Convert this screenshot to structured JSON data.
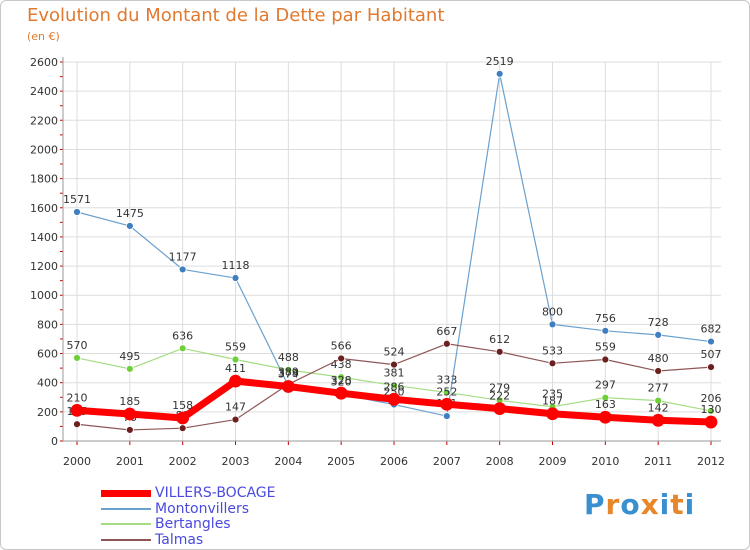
{
  "title": "Evolution du Montant de la Dette par Habitant",
  "subtitle": "(en €)",
  "logo": {
    "text": "Proxiti",
    "colors": [
      "#3a8fd0",
      "#e8862a",
      "#3a8fd0",
      "#e8862a",
      "#3a8fd0",
      "#e8862a",
      "#3a8fd0"
    ]
  },
  "chart_data": {
    "type": "line",
    "x": [
      "2000",
      "2001",
      "2002",
      "2003",
      "2004",
      "2005",
      "2006",
      "2007",
      "2008",
      "2009",
      "2010",
      "2011",
      "2012"
    ],
    "ylim": [
      0,
      2600
    ],
    "yticks": [
      "0",
      "200",
      "400",
      "600",
      "800",
      "1000",
      "1200",
      "1400",
      "1600",
      "1800",
      "2000",
      "2200",
      "2400",
      "2600"
    ],
    "grid": true,
    "legend_position": "bottom-left",
    "series": [
      {
        "name": "Montonvillers",
        "color": "#6aa1cf",
        "marker": "#3f7fc0",
        "width": 1.2,
        "values": [
          1571,
          1475,
          1177,
          1118,
          379,
          320,
          250,
          171,
          2519,
          800,
          756,
          728,
          682
        ],
        "labels": [
          "1571",
          "1475",
          "1177",
          "1118",
          "379",
          "320",
          "250",
          "171",
          "2519",
          "800",
          "756",
          "728",
          "682"
        ]
      },
      {
        "name": "Bertangles",
        "color": "#a6dd84",
        "marker": "#6fcf3a",
        "width": 1.2,
        "values": [
          570,
          495,
          636,
          559,
          488,
          438,
          381,
          333,
          279,
          235,
          297,
          277,
          206
        ],
        "labels": [
          "570",
          "495",
          "636",
          "559",
          "488",
          "438",
          "381",
          "333",
          "279",
          "235",
          "297",
          "277",
          "206"
        ]
      },
      {
        "name": "Talmas",
        "color": "#8f5656",
        "marker": "#6b1f1f",
        "width": 1.2,
        "values": [
          115,
          76,
          88,
          147,
          389,
          566,
          524,
          667,
          612,
          533,
          559,
          480,
          507
        ],
        "labels": [
          "115",
          "76",
          "88",
          "147",
          "389",
          "566",
          "524",
          "667",
          "612",
          "533",
          "559",
          "480",
          "507"
        ]
      },
      {
        "name": "VILLERS-BOCAGE",
        "color": "#ff0000",
        "marker": "#ff0000",
        "width": 7,
        "values": [
          210,
          185,
          158,
          411,
          374,
          328,
          286,
          252,
          222,
          187,
          163,
          142,
          130
        ],
        "labels": [
          "210",
          "185",
          "158",
          "411",
          "374",
          "328",
          "286",
          "252",
          "222",
          "187",
          "163",
          "142",
          "130"
        ]
      }
    ]
  },
  "legend": [
    {
      "label": "VILLERS-BOCAGE",
      "color": "#ff0000",
      "thickness": 7
    },
    {
      "label": "Montonvillers",
      "color": "#6aa1cf",
      "thickness": 2
    },
    {
      "label": "Bertangles",
      "color": "#a6dd84",
      "thickness": 2
    },
    {
      "label": "Talmas",
      "color": "#8f5656",
      "thickness": 2
    }
  ]
}
